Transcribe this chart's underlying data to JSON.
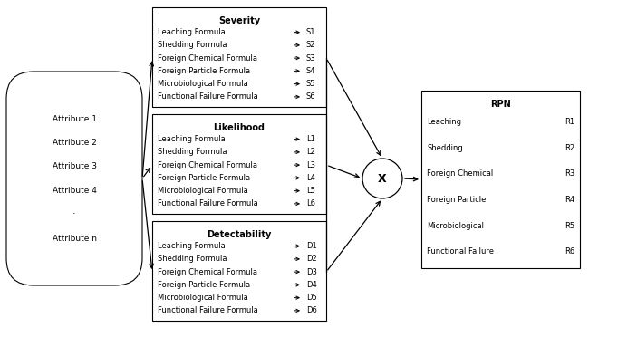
{
  "bg_color": "#ffffff",
  "box_line_color": "#000000",
  "text_color": "#000000",
  "hex_attrs": [
    "Attribute 1",
    "Attribute 2",
    "Attribute 3",
    "Attribute 4",
    ":",
    "Attribute n"
  ],
  "severity_title": "Severity",
  "severity_rows": [
    [
      "Leaching Formula",
      "S1"
    ],
    [
      "Shedding Formula",
      "S2"
    ],
    [
      "Foreign Chemical Formula",
      "S3"
    ],
    [
      "Foreign Particle Formula",
      "S4"
    ],
    [
      "Microbiological Formula",
      "S5"
    ],
    [
      "Functional Failure Formula",
      "S6"
    ]
  ],
  "likelihood_title": "Likelihood",
  "likelihood_rows": [
    [
      "Leaching Formula",
      "L1"
    ],
    [
      "Shedding Formula",
      "L2"
    ],
    [
      "Foreign Chemical Formula",
      "L3"
    ],
    [
      "Foreign Particle Formula",
      "L4"
    ],
    [
      "Microbiological Formula",
      "L5"
    ],
    [
      "Functional Failure Formula",
      "L6"
    ]
  ],
  "detectability_title": "Detectability",
  "detectability_rows": [
    [
      "Leaching Formula",
      "D1"
    ],
    [
      "Shedding Formula",
      "D2"
    ],
    [
      "Foreign Chemical Formula",
      "D3"
    ],
    [
      "Foreign Particle Formula",
      "D4"
    ],
    [
      "Microbiological Formula",
      "D5"
    ],
    [
      "Functional Failure Formula",
      "D6"
    ]
  ],
  "rpn_title": "RPN",
  "rpn_rows": [
    [
      "Leaching",
      "R1"
    ],
    [
      "Shedding",
      "R2"
    ],
    [
      "Foreign Chemical",
      "R3"
    ],
    [
      "Foreign Particle",
      "R4"
    ],
    [
      "Microbiological",
      "R5"
    ],
    [
      "Functional Failure",
      "R6"
    ]
  ],
  "figsize": [
    7.03,
    3.94
  ],
  "dpi": 100
}
